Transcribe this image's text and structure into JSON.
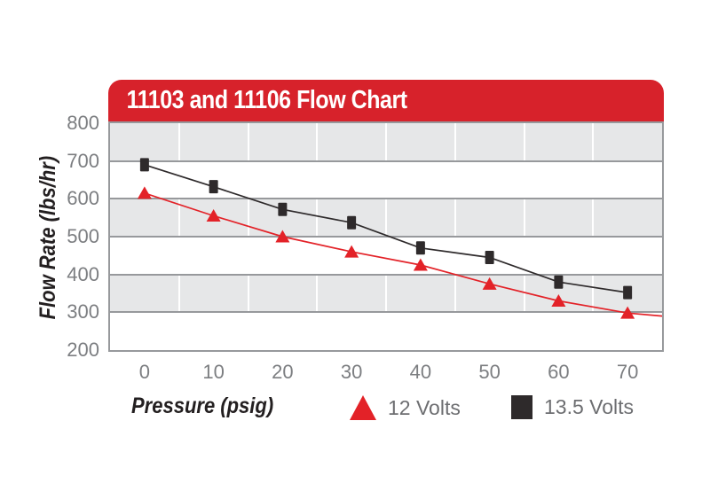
{
  "title": "11103 and 11106 Flow Chart",
  "colors": {
    "banner_red": "#d7222b",
    "series_red": "#e32228",
    "series_black": "#2e2a2b",
    "band_gray": "#e6e7e8",
    "grid_gray": "#97999c",
    "tick_text": "#7c7e81",
    "axis_title_text": "#231f20",
    "legend_text": "#6d6e71"
  },
  "chart_data": {
    "type": "line",
    "title": "11103 and 11106 Flow Chart",
    "xlabel": "Pressure (psig)",
    "ylabel": "Flow Rate (lbs/hr)",
    "x": [
      0,
      10,
      20,
      30,
      40,
      50,
      60,
      70
    ],
    "x_tick_labels": [
      "0",
      "10",
      "20",
      "30",
      "40",
      "50",
      "60",
      "70"
    ],
    "y_ticks": [
      800,
      700,
      600,
      500,
      400,
      300,
      200
    ],
    "ylim": [
      200,
      800
    ],
    "grid": "horizontal-bands-alternating-gray",
    "legend_position": "bottom",
    "series": [
      {
        "name": "12 Volts",
        "marker": "triangle",
        "color": "#e32228",
        "values": [
          615,
          555,
          500,
          460,
          425,
          375,
          330,
          298
        ],
        "extend_right_value": 290
      },
      {
        "name": "13.5 Volts",
        "marker": "square",
        "color": "#2e2a2b",
        "values": [
          690,
          632,
          572,
          537,
          470,
          445,
          380,
          352
        ]
      }
    ]
  },
  "legend": {
    "items": [
      {
        "label": "12 Volts",
        "marker": "triangle"
      },
      {
        "label": "13.5 Volts",
        "marker": "square"
      }
    ]
  }
}
